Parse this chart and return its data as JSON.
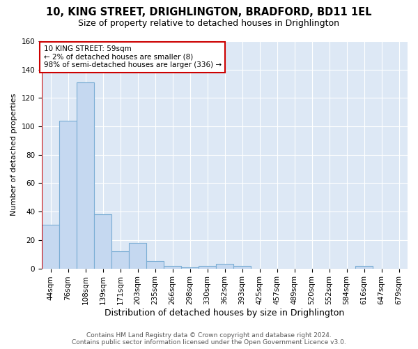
{
  "title_line1": "10, KING STREET, DRIGHLINGTON, BRADFORD, BD11 1EL",
  "title_line2": "Size of property relative to detached houses in Drighlington",
  "xlabel": "Distribution of detached houses by size in Drighlington",
  "ylabel": "Number of detached properties",
  "footer_line1": "Contains HM Land Registry data © Crown copyright and database right 2024.",
  "footer_line2": "Contains public sector information licensed under the Open Government Licence v3.0.",
  "bar_labels": [
    "44sqm",
    "76sqm",
    "108sqm",
    "139sqm",
    "171sqm",
    "203sqm",
    "235sqm",
    "266sqm",
    "298sqm",
    "330sqm",
    "362sqm",
    "393sqm",
    "425sqm",
    "457sqm",
    "489sqm",
    "520sqm",
    "552sqm",
    "584sqm",
    "616sqm",
    "647sqm",
    "679sqm"
  ],
  "bar_values": [
    31,
    104,
    131,
    38,
    12,
    18,
    5,
    2,
    1,
    2,
    3,
    2,
    0,
    0,
    0,
    0,
    0,
    0,
    2,
    0,
    0
  ],
  "bar_color": "#c5d8f0",
  "bar_edge_color": "#7aadd4",
  "annotation_text_line1": "10 KING STREET: 59sqm",
  "annotation_text_line2": "← 2% of detached houses are smaller (8)",
  "annotation_text_line3": "98% of semi-detached houses are larger (336) →",
  "annotation_box_color": "#ffffff",
  "annotation_box_edge_color": "#cc0000",
  "vline_color": "#cc0000",
  "fig_background_color": "#ffffff",
  "ax_background_color": "#dde8f5",
  "ylim": [
    0,
    160
  ],
  "yticks": [
    0,
    20,
    40,
    60,
    80,
    100,
    120,
    140,
    160
  ],
  "grid_color": "#ffffff",
  "title_fontsize": 10.5,
  "subtitle_fontsize": 9,
  "ylabel_fontsize": 8,
  "xlabel_fontsize": 9,
  "tick_fontsize": 7.5,
  "annotation_fontsize": 7.5,
  "footer_fontsize": 6.5,
  "vline_x": -0.5
}
